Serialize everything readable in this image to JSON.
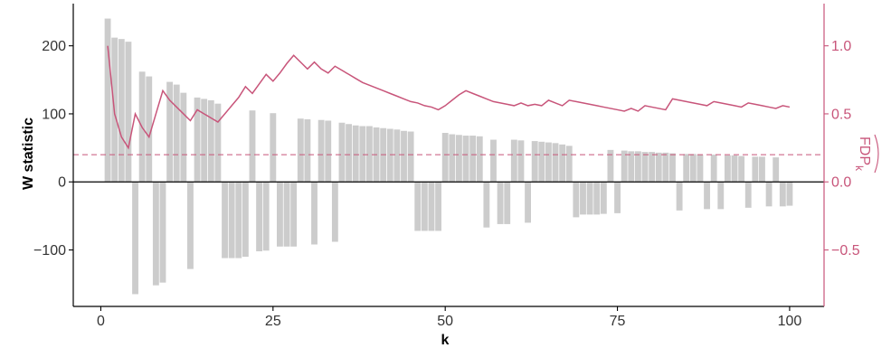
{
  "chart_data": {
    "type": "bar",
    "xlabel": "k",
    "ylabel": "W statistic",
    "y2label_main": "FDP",
    "y2label_sub": "k",
    "xlim": [
      -4,
      105
    ],
    "ylim": [
      -183,
      262
    ],
    "y2lim": [
      -0.915,
      1.31
    ],
    "x_ticks": [
      0,
      25,
      50,
      75,
      100
    ],
    "x_tick_labels": [
      "0",
      "25",
      "50",
      "75",
      "100"
    ],
    "y_ticks": [
      -100,
      0,
      100,
      200
    ],
    "y_tick_labels": [
      "−100",
      "0",
      "100",
      "200"
    ],
    "y2_ticks": [
      -0.5,
      0.0,
      0.5,
      1.0
    ],
    "y2_tick_labels": [
      "−0.5",
      "0.0",
      "0.5",
      "1.0"
    ],
    "threshold": 0.2,
    "grid": false,
    "colors": {
      "bars": "#cccccc",
      "fdp": "#c8557a",
      "axis": "#000000"
    },
    "series": [
      {
        "name": "W statistic",
        "type": "bar",
        "values": [
          240,
          212,
          210,
          206,
          -165,
          162,
          155,
          -152,
          -148,
          147,
          143,
          131,
          -128,
          124,
          122,
          120,
          115,
          -112,
          -112,
          -112,
          -110,
          105,
          -102,
          -101,
          101,
          -95,
          -95,
          -95,
          93,
          92,
          -92,
          91,
          90,
          -88,
          87,
          85,
          83,
          82,
          82,
          80,
          79,
          78,
          77,
          75,
          74,
          -72,
          -72,
          -72,
          -72,
          72,
          70,
          69,
          68,
          68,
          67,
          -67,
          62,
          -62,
          -62,
          62,
          61,
          -60,
          60,
          59,
          58,
          57,
          55,
          53,
          -52,
          -48,
          -48,
          -48,
          -47,
          47,
          -46,
          46,
          45,
          45,
          44,
          44,
          43,
          43,
          42,
          -42,
          41,
          41,
          40,
          -40,
          40,
          -40,
          39,
          39,
          38,
          -38,
          37,
          37,
          -36,
          36,
          -36,
          -35
        ]
      },
      {
        "name": "FDP",
        "type": "line",
        "values": [
          1.0,
          0.5,
          0.33,
          0.25,
          0.5,
          0.4,
          0.33,
          0.5,
          0.67,
          0.6,
          0.55,
          0.5,
          0.45,
          0.53,
          0.5,
          0.47,
          0.44,
          0.5,
          0.56,
          0.62,
          0.7,
          0.65,
          0.72,
          0.79,
          0.74,
          0.8,
          0.87,
          0.93,
          0.88,
          0.83,
          0.88,
          0.83,
          0.8,
          0.85,
          0.82,
          0.79,
          0.76,
          0.73,
          0.71,
          0.69,
          0.67,
          0.65,
          0.63,
          0.61,
          0.59,
          0.58,
          0.56,
          0.55,
          0.53,
          0.56,
          0.6,
          0.64,
          0.67,
          0.65,
          0.63,
          0.61,
          0.59,
          0.58,
          0.57,
          0.56,
          0.58,
          0.56,
          0.57,
          0.56,
          0.6,
          0.58,
          0.56,
          0.6,
          0.59,
          0.58,
          0.57,
          0.56,
          0.55,
          0.54,
          0.53,
          0.52,
          0.54,
          0.52,
          0.56,
          0.55,
          0.54,
          0.53,
          0.61,
          0.6,
          0.59,
          0.58,
          0.57,
          0.56,
          0.59,
          0.58,
          0.57,
          0.56,
          0.55,
          0.58,
          0.57,
          0.56,
          0.55,
          0.54,
          0.56,
          0.55
        ]
      }
    ]
  }
}
